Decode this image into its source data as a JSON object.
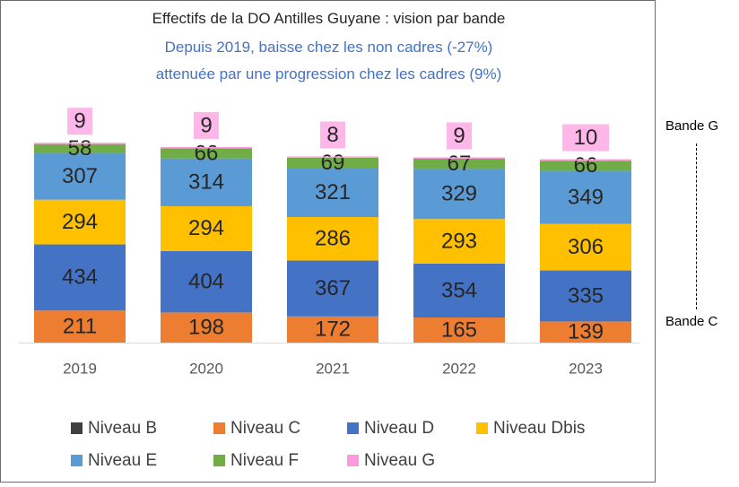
{
  "chart_data": {
    "type": "bar",
    "stacked": true,
    "title": "Effectifs de la DO Antilles Guyane : vision par bande",
    "subtitle_lines": [
      "Depuis 2019, baisse chez les non cadres (-27%)",
      "attenuée par une progression chez les cadres (9%)"
    ],
    "categories": [
      "2019",
      "2020",
      "2021",
      "2022",
      "2023"
    ],
    "series": [
      {
        "name": "Niveau B",
        "color": "#404040",
        "values": [
          0,
          0,
          0,
          0,
          0
        ]
      },
      {
        "name": "Niveau C",
        "color": "#ed7d31",
        "values": [
          211,
          198,
          172,
          165,
          139
        ]
      },
      {
        "name": "Niveau D",
        "color": "#4472c4",
        "values": [
          434,
          404,
          367,
          354,
          335
        ]
      },
      {
        "name": "Niveau Dbis",
        "color": "#ffc000",
        "values": [
          294,
          294,
          286,
          293,
          306
        ]
      },
      {
        "name": "Niveau E",
        "color": "#5b9bd5",
        "values": [
          307,
          314,
          321,
          329,
          349
        ]
      },
      {
        "name": "Niveau F",
        "color": "#70ad47",
        "values": [
          58,
          66,
          69,
          67,
          66
        ]
      },
      {
        "name": "Niveau G",
        "color": "#ff99dd",
        "values": [
          9,
          9,
          8,
          9,
          10
        ]
      }
    ],
    "legend_position": "bottom",
    "grid": false
  },
  "annotations": {
    "top_label": "Bande G",
    "bottom_label": "Bande C"
  },
  "colors": {
    "subtitle": "#4472c4",
    "title": "#262626",
    "label_box_pink": "#ffb7ea"
  }
}
